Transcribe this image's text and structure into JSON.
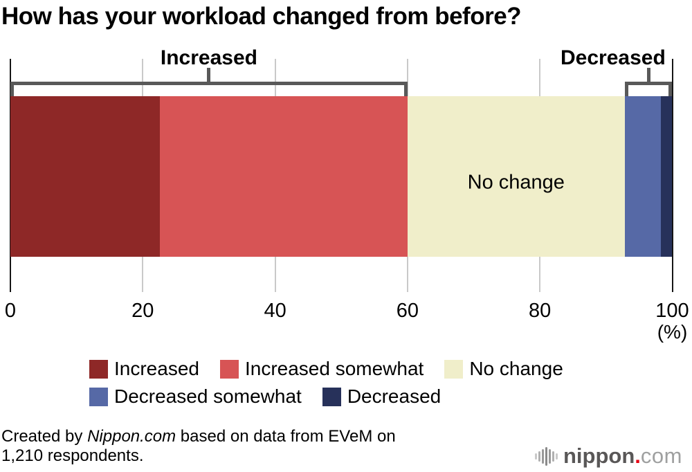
{
  "title": "How has your workload changed from before?",
  "chart_data": {
    "type": "bar",
    "variant": "horizontal-stacked-single-bar",
    "title": "How has your workload changed from before?",
    "unit": "%",
    "xlim": [
      0,
      100
    ],
    "xticks": [
      "0",
      "20",
      "40",
      "60",
      "80",
      "100"
    ],
    "x_axis_unit_label": "(%)",
    "grid": "vertical gridlines at 20/40/60/80, black edge lines at 0 and 100",
    "series": [
      {
        "name": "Increased",
        "value": 22.6,
        "color": "#8e2827"
      },
      {
        "name": "Increased somewhat",
        "value": 37.4,
        "color": "#d75455"
      },
      {
        "name": "No change",
        "value": 32.8,
        "color": "#f0eeca"
      },
      {
        "name": "Decreased somewhat",
        "value": 5.5,
        "color": "#5669a6"
      },
      {
        "name": "Decreased",
        "value": 1.7,
        "color": "#27315a"
      }
    ],
    "in_bar_label": {
      "text": "No change",
      "segment": "No change"
    },
    "brackets": [
      {
        "label": "Increased",
        "from": 0,
        "to": 60
      },
      {
        "label": "Decreased",
        "from": 92.8,
        "to": 100
      }
    ],
    "legend_position": "bottom"
  },
  "legend": {
    "rows": [
      [
        {
          "label": "Increased",
          "color": "#8e2827"
        },
        {
          "label": "Increased somewhat",
          "color": "#d75455"
        },
        {
          "label": "No change",
          "color": "#f0eeca"
        }
      ],
      [
        {
          "label": "Decreased somewhat",
          "color": "#5669a6"
        },
        {
          "label": "Decreased",
          "color": "#27315a"
        }
      ]
    ]
  },
  "footer": {
    "credit_prefix": "Created by ",
    "credit_source": "Nippon.com",
    "credit_suffix": " based on data from EVeM on\n1,210 respondents.",
    "logo": {
      "main": "nippon",
      "dot": ".",
      "suffix": "com",
      "main_color": "#595757",
      "dot_color": "#e60012",
      "suffix_color": "#9fa0a0"
    }
  },
  "colors": {
    "background": "#ffffff",
    "axis": "#151515",
    "gridline": "#c9c9c9",
    "bracket": "#595959",
    "text": "#000000"
  }
}
